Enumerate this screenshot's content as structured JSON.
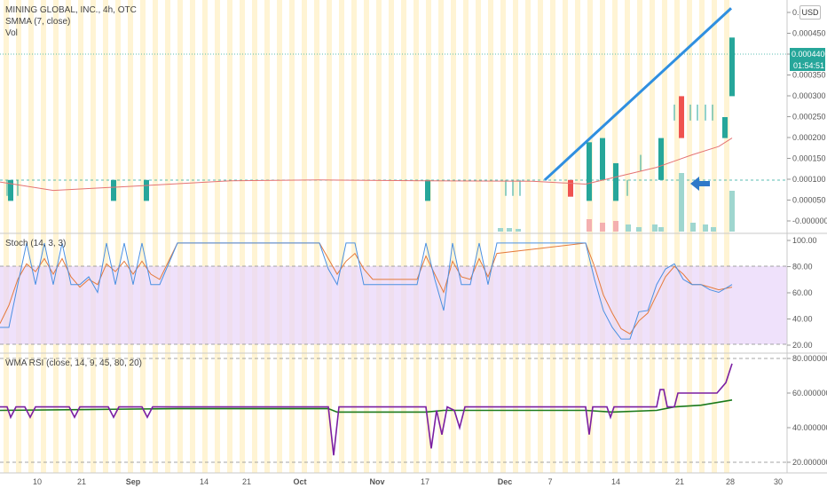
{
  "header": {
    "title": "MINING GLOBAL, INC., 4h, OTC",
    "smma_label": "SMMA (7, close)",
    "vol_label": "Vol",
    "currency": "USD"
  },
  "stoch_label": "Stoch (14, 3, 3)",
  "rsi_label": "WMA RSI (close, 14, 9, 45, 80, 20)",
  "last_price": "0.0004400",
  "countdown": "01:54:51",
  "colors": {
    "up": "#26a69a",
    "down": "#ef5350",
    "smma": "#e57373",
    "trendline": "#2f8fe0",
    "arrow": "#2f79c9",
    "stoch_k": "#4a90e2",
    "stoch_d": "#e57a3c",
    "rsi_main": "#7b1fa2",
    "rsi_wma": "#1b7a1b",
    "stoch_band": "#e8d4fa",
    "bg_stripe": "#fff2cc"
  },
  "chart_data": [
    {
      "type": "candlestick",
      "title": "MINING GLOBAL, INC., 4h, OTC",
      "y_ticks": [
        "0.0005",
        "0.000450",
        "0.000400",
        "0.000350",
        "0.000300",
        "0.000250",
        "0.000200",
        "0.000150",
        "0.000100",
        "0.000050",
        "-0.000000"
      ],
      "x_ticks": [
        "10",
        "21",
        "Sep",
        "14",
        "21",
        "Oct",
        "Nov",
        "17",
        "Dec",
        "7",
        "14",
        "21",
        "28",
        "30"
      ],
      "candles": [
        {
          "x": 12,
          "o": 5e-05,
          "c": 0.0001
        },
        {
          "x": 128,
          "o": 5e-05,
          "c": 0.0001
        },
        {
          "x": 165,
          "o": 5e-05,
          "c": 0.0001
        },
        {
          "x": 482,
          "o": 5e-05,
          "c": 0.0001
        },
        {
          "x": 643,
          "o": 0.0001,
          "c": 6e-05
        },
        {
          "x": 664,
          "o": 5e-05,
          "c": 0.00019
        },
        {
          "x": 679,
          "o": 0.0001,
          "c": 0.0002
        },
        {
          "x": 694,
          "o": 5e-05,
          "c": 0.00014
        },
        {
          "x": 745,
          "o": 0.0001,
          "c": 0.0002
        },
        {
          "x": 768,
          "o": 0.0003,
          "c": 0.0002
        },
        {
          "x": 817,
          "o": 0.0002,
          "c": 0.00025
        },
        {
          "x": 825,
          "o": 0.0003,
          "c": 0.00044
        }
      ],
      "smma": [
        [
          0,
          9.5e-05
        ],
        [
          60,
          7.5e-05
        ],
        [
          150,
          8.5e-05
        ],
        [
          260,
          9.8e-05
        ],
        [
          360,
          0.0001
        ],
        [
          480,
          9.8e-05
        ],
        [
          600,
          9.7e-05
        ],
        [
          660,
          9e-05
        ],
        [
          700,
          0.00011
        ],
        [
          740,
          0.00013
        ],
        [
          780,
          0.00016
        ],
        [
          810,
          0.00018
        ],
        [
          825,
          0.0002
        ]
      ],
      "volume": [
        {
          "x": 564,
          "h": 4,
          "up": true
        },
        {
          "x": 574,
          "h": 4,
          "up": true
        },
        {
          "x": 584,
          "h": 3,
          "up": true
        },
        {
          "x": 664,
          "h": 14,
          "up": false
        },
        {
          "x": 679,
          "h": 10,
          "up": false
        },
        {
          "x": 694,
          "h": 12,
          "up": false
        },
        {
          "x": 708,
          "h": 8,
          "up": true
        },
        {
          "x": 720,
          "h": 5,
          "up": true
        },
        {
          "x": 738,
          "h": 8,
          "up": true
        },
        {
          "x": 745,
          "h": 5,
          "up": true
        },
        {
          "x": 768,
          "h": 66,
          "up": true
        },
        {
          "x": 781,
          "h": 10,
          "up": true
        },
        {
          "x": 795,
          "h": 8,
          "up": true
        },
        {
          "x": 804,
          "h": 5,
          "up": true
        },
        {
          "x": 825,
          "h": 46,
          "up": true
        }
      ],
      "trendline": [
        [
          614,
          0.0001
        ],
        [
          824,
          0.00051
        ]
      ]
    },
    {
      "type": "line",
      "title": "Stoch (14, 3, 3)",
      "y_ticks": [
        "100.00",
        "80.00",
        "60.00",
        "40.00",
        "20.00"
      ],
      "ylim": [
        20,
        100
      ],
      "band": [
        20,
        80
      ],
      "series": [
        {
          "name": "%K",
          "points": [
            [
              0,
              33
            ],
            [
              10,
              33
            ],
            [
              20,
              66
            ],
            [
              30,
              98
            ],
            [
              40,
              66
            ],
            [
              50,
              98
            ],
            [
              60,
              66
            ],
            [
              70,
              98
            ],
            [
              80,
              66
            ],
            [
              90,
              66
            ],
            [
              100,
              72
            ],
            [
              110,
              60
            ],
            [
              120,
              98
            ],
            [
              130,
              66
            ],
            [
              140,
              98
            ],
            [
              150,
              66
            ],
            [
              160,
              98
            ],
            [
              170,
              66
            ],
            [
              180,
              66
            ],
            [
              200,
              98
            ],
            [
              360,
              98
            ],
            [
              370,
              78
            ],
            [
              380,
              66
            ],
            [
              390,
              98
            ],
            [
              400,
              98
            ],
            [
              410,
              66
            ],
            [
              420,
              66
            ],
            [
              470,
              66
            ],
            [
              480,
              98
            ],
            [
              490,
              70
            ],
            [
              500,
              46
            ],
            [
              510,
              98
            ],
            [
              520,
              66
            ],
            [
              530,
              66
            ],
            [
              540,
              98
            ],
            [
              550,
              66
            ],
            [
              560,
              98
            ],
            [
              660,
              98
            ],
            [
              670,
              70
            ],
            [
              680,
              46
            ],
            [
              690,
              33
            ],
            [
              700,
              24
            ],
            [
              710,
              24
            ],
            [
              720,
              45
            ],
            [
              730,
              46
            ],
            [
              740,
              66
            ],
            [
              750,
              78
            ],
            [
              760,
              82
            ],
            [
              770,
              70
            ],
            [
              780,
              66
            ],
            [
              790,
              66
            ],
            [
              800,
              62
            ],
            [
              810,
              60
            ],
            [
              825,
              66
            ]
          ]
        },
        {
          "name": "%D",
          "points": [
            [
              0,
              36
            ],
            [
              10,
              50
            ],
            [
              20,
              70
            ],
            [
              30,
              82
            ],
            [
              40,
              76
            ],
            [
              50,
              86
            ],
            [
              60,
              74
            ],
            [
              70,
              86
            ],
            [
              80,
              72
            ],
            [
              90,
              64
            ],
            [
              100,
              70
            ],
            [
              110,
              66
            ],
            [
              120,
              82
            ],
            [
              130,
              76
            ],
            [
              140,
              84
            ],
            [
              150,
              74
            ],
            [
              160,
              84
            ],
            [
              170,
              74
            ],
            [
              180,
              70
            ],
            [
              200,
              98
            ],
            [
              360,
              98
            ],
            [
              370,
              86
            ],
            [
              380,
              74
            ],
            [
              390,
              84
            ],
            [
              400,
              90
            ],
            [
              410,
              78
            ],
            [
              420,
              70
            ],
            [
              470,
              70
            ],
            [
              480,
              88
            ],
            [
              490,
              74
            ],
            [
              500,
              60
            ],
            [
              510,
              84
            ],
            [
              520,
              72
            ],
            [
              530,
              70
            ],
            [
              540,
              86
            ],
            [
              550,
              72
            ],
            [
              560,
              90
            ],
            [
              660,
              98
            ],
            [
              670,
              80
            ],
            [
              680,
              58
            ],
            [
              690,
              44
            ],
            [
              700,
              32
            ],
            [
              710,
              28
            ],
            [
              720,
              38
            ],
            [
              730,
              44
            ],
            [
              740,
              58
            ],
            [
              750,
              72
            ],
            [
              760,
              80
            ],
            [
              770,
              74
            ],
            [
              780,
              66
            ],
            [
              790,
              66
            ],
            [
              800,
              64
            ],
            [
              810,
              62
            ],
            [
              825,
              64
            ]
          ]
        }
      ]
    },
    {
      "type": "line",
      "title": "WMA RSI (close, 14, 9, 45, 80, 20)",
      "y_ticks": [
        "80.000000",
        "60.000000",
        "40.000000",
        "20.000000"
      ],
      "ylim": [
        20,
        80
      ],
      "series": [
        {
          "name": "RSI",
          "points": [
            [
              0,
              52
            ],
            [
              8,
              52
            ],
            [
              12,
              46
            ],
            [
              18,
              52
            ],
            [
              28,
              52
            ],
            [
              34,
              46
            ],
            [
              40,
              52
            ],
            [
              78,
              52
            ],
            [
              84,
              46
            ],
            [
              90,
              52
            ],
            [
              122,
              52
            ],
            [
              128,
              46
            ],
            [
              134,
              52
            ],
            [
              160,
              52
            ],
            [
              166,
              46
            ],
            [
              172,
              52
            ],
            [
              370,
              52
            ],
            [
              376,
              24
            ],
            [
              382,
              52
            ],
            [
              480,
              52
            ],
            [
              486,
              28
            ],
            [
              492,
              50
            ],
            [
              498,
              36
            ],
            [
              504,
              52
            ],
            [
              512,
              50
            ],
            [
              518,
              40
            ],
            [
              524,
              52
            ],
            [
              660,
              52
            ],
            [
              664,
              36
            ],
            [
              668,
              52
            ],
            [
              684,
              52
            ],
            [
              688,
              46
            ],
            [
              692,
              52
            ],
            [
              708,
              52
            ],
            [
              712,
              52
            ],
            [
              740,
              52
            ],
            [
              744,
              62
            ],
            [
              748,
              62
            ],
            [
              752,
              52
            ],
            [
              760,
              52
            ],
            [
              764,
              60
            ],
            [
              808,
              60
            ],
            [
              818,
              66
            ],
            [
              825,
              77
            ]
          ]
        },
        {
          "name": "WMA",
          "points": [
            [
              0,
              50
            ],
            [
              100,
              50.5
            ],
            [
              200,
              51
            ],
            [
              300,
              51
            ],
            [
              370,
              51
            ],
            [
              380,
              49
            ],
            [
              480,
              49
            ],
            [
              500,
              50
            ],
            [
              600,
              50
            ],
            [
              660,
              50
            ],
            [
              690,
              49
            ],
            [
              740,
              50
            ],
            [
              760,
              52
            ],
            [
              790,
              53
            ],
            [
              825,
              56
            ]
          ]
        }
      ]
    }
  ]
}
